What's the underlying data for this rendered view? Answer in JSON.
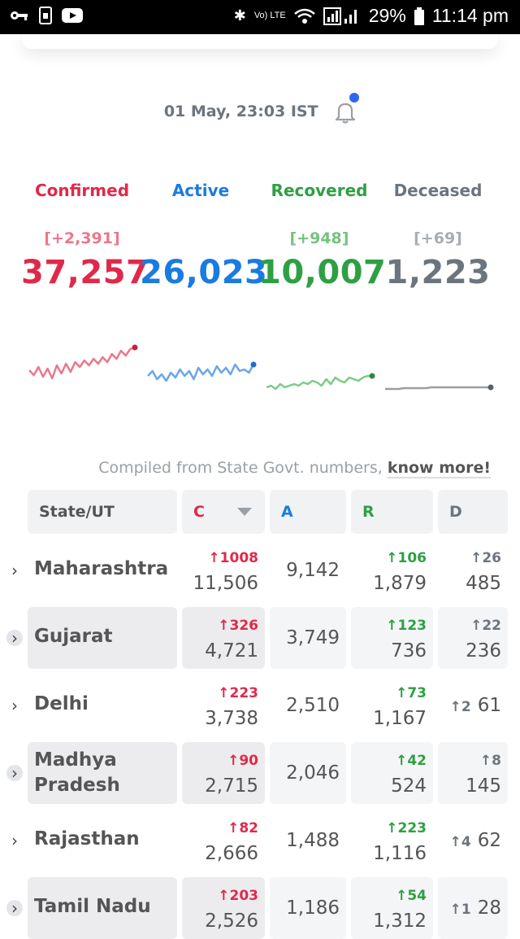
{
  "status_bar": {
    "battery": "29%",
    "time": "11:14 pm",
    "volte": "Vo) LTE"
  },
  "header": {
    "last_updated": "01 May, 23:03 IST",
    "bell_icon": "bell-icon"
  },
  "stats": [
    {
      "key": "confirmed",
      "label": "Confirmed",
      "delta": "[+2,391]",
      "value": "37,257",
      "color": "#e0294a",
      "delta_color": "#e8798d"
    },
    {
      "key": "active",
      "label": "Active",
      "delta": "",
      "value": "26,023",
      "color": "#1a7be0",
      "delta_color": "#6ba6e8"
    },
    {
      "key": "recovered",
      "label": "Recovered",
      "delta": "[+948]",
      "value": "10,007",
      "color": "#2ea043",
      "delta_color": "#76c27f"
    },
    {
      "key": "deceased",
      "label": "Deceased",
      "delta": "[+69]",
      "value": "1,223",
      "color": "#6c757d",
      "delta_color": "#a8adb2"
    }
  ],
  "compiled": {
    "text": "Compiled from State Govt. numbers, ",
    "link": "know more!"
  },
  "table": {
    "headers": {
      "state": "State/UT",
      "c": "C",
      "a": "A",
      "r": "R",
      "d": "D"
    },
    "rows": [
      {
        "state": "Maharashtra",
        "c_delta": "↑1008",
        "c": "11,506",
        "a": "9,142",
        "r_delta": "↑106",
        "r": "1,879",
        "d_delta": "↑26",
        "d": "485",
        "shaded": false
      },
      {
        "state": "Gujarat",
        "c_delta": "↑326",
        "c": "4,721",
        "a": "3,749",
        "r_delta": "↑123",
        "r": "736",
        "d_delta": "↑22",
        "d": "236",
        "shaded": true
      },
      {
        "state": "Delhi",
        "c_delta": "↑223",
        "c": "3,738",
        "a": "2,510",
        "r_delta": "↑73",
        "r": "1,167",
        "d_delta": "↑2",
        "d": "61",
        "shaded": false
      },
      {
        "state": "Madhya\nPradesh",
        "c_delta": "↑90",
        "c": "2,715",
        "a": "2,046",
        "r_delta": "↑42",
        "r": "524",
        "d_delta": "↑8",
        "d": "145",
        "shaded": true
      },
      {
        "state": "Rajasthan",
        "c_delta": "↑82",
        "c": "2,666",
        "a": "1,488",
        "r_delta": "↑223",
        "r": "1,116",
        "d_delta": "↑4",
        "d": "62",
        "shaded": false
      },
      {
        "state": "Tamil Nadu",
        "c_delta": "↑203",
        "c": "2,526",
        "a": "1,186",
        "r_delta": "↑54",
        "r": "1,312",
        "d_delta": "↑1",
        "d": "28",
        "shaded": true
      }
    ]
  },
  "colors": {
    "confirmed": "#e0294a",
    "active": "#1a7be0",
    "recovered": "#2ea043",
    "deceased": "#6c757d",
    "confirmed_spark": "#e8798d",
    "active_spark": "#6ba6e8",
    "recovered_spark": "#7ccb86",
    "deceased_spark": "#9a9fa4"
  }
}
